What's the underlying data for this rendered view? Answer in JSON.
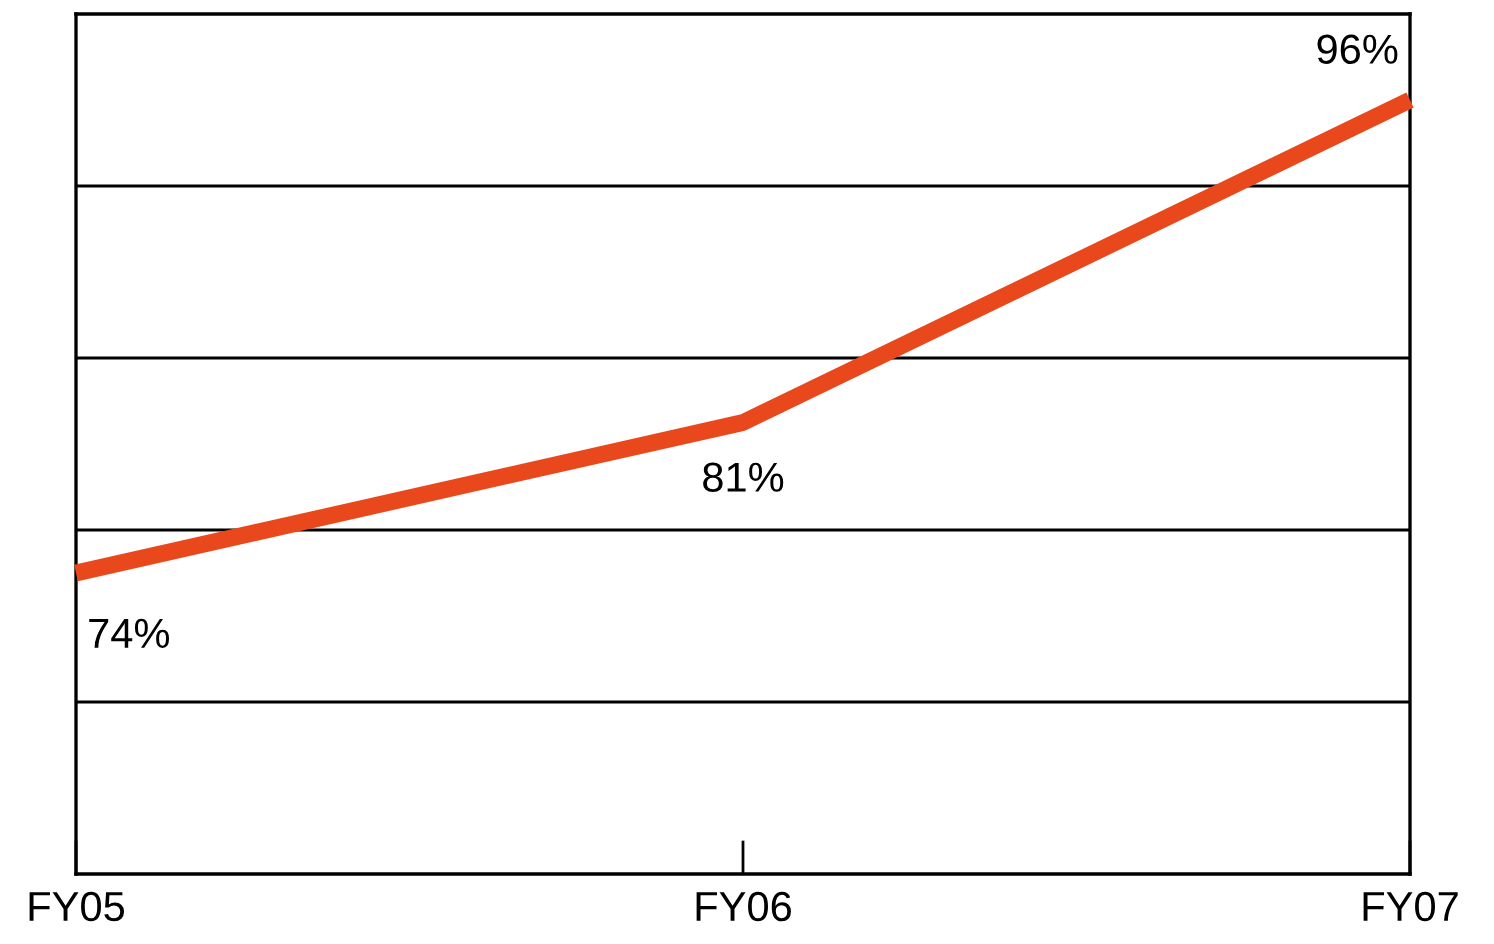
{
  "chart_data": {
    "type": "line",
    "categories": [
      "FY05",
      "FY06",
      "FY07"
    ],
    "series": [
      {
        "color": "#e8481c",
        "values": [
          74,
          81,
          96
        ],
        "value_labels": [
          "74%",
          "81%",
          "96%"
        ]
      }
    ],
    "ylim": [
      60,
      100
    ],
    "yticks": [
      {
        "value": 68,
        "label": null
      },
      {
        "value": 76,
        "label": null
      },
      {
        "value": 84,
        "label": null
      },
      {
        "value": 92,
        "label": null
      }
    ],
    "grid": "y",
    "legend": false,
    "marker": "none",
    "line_style": "solid",
    "tick_labels": "x"
  }
}
